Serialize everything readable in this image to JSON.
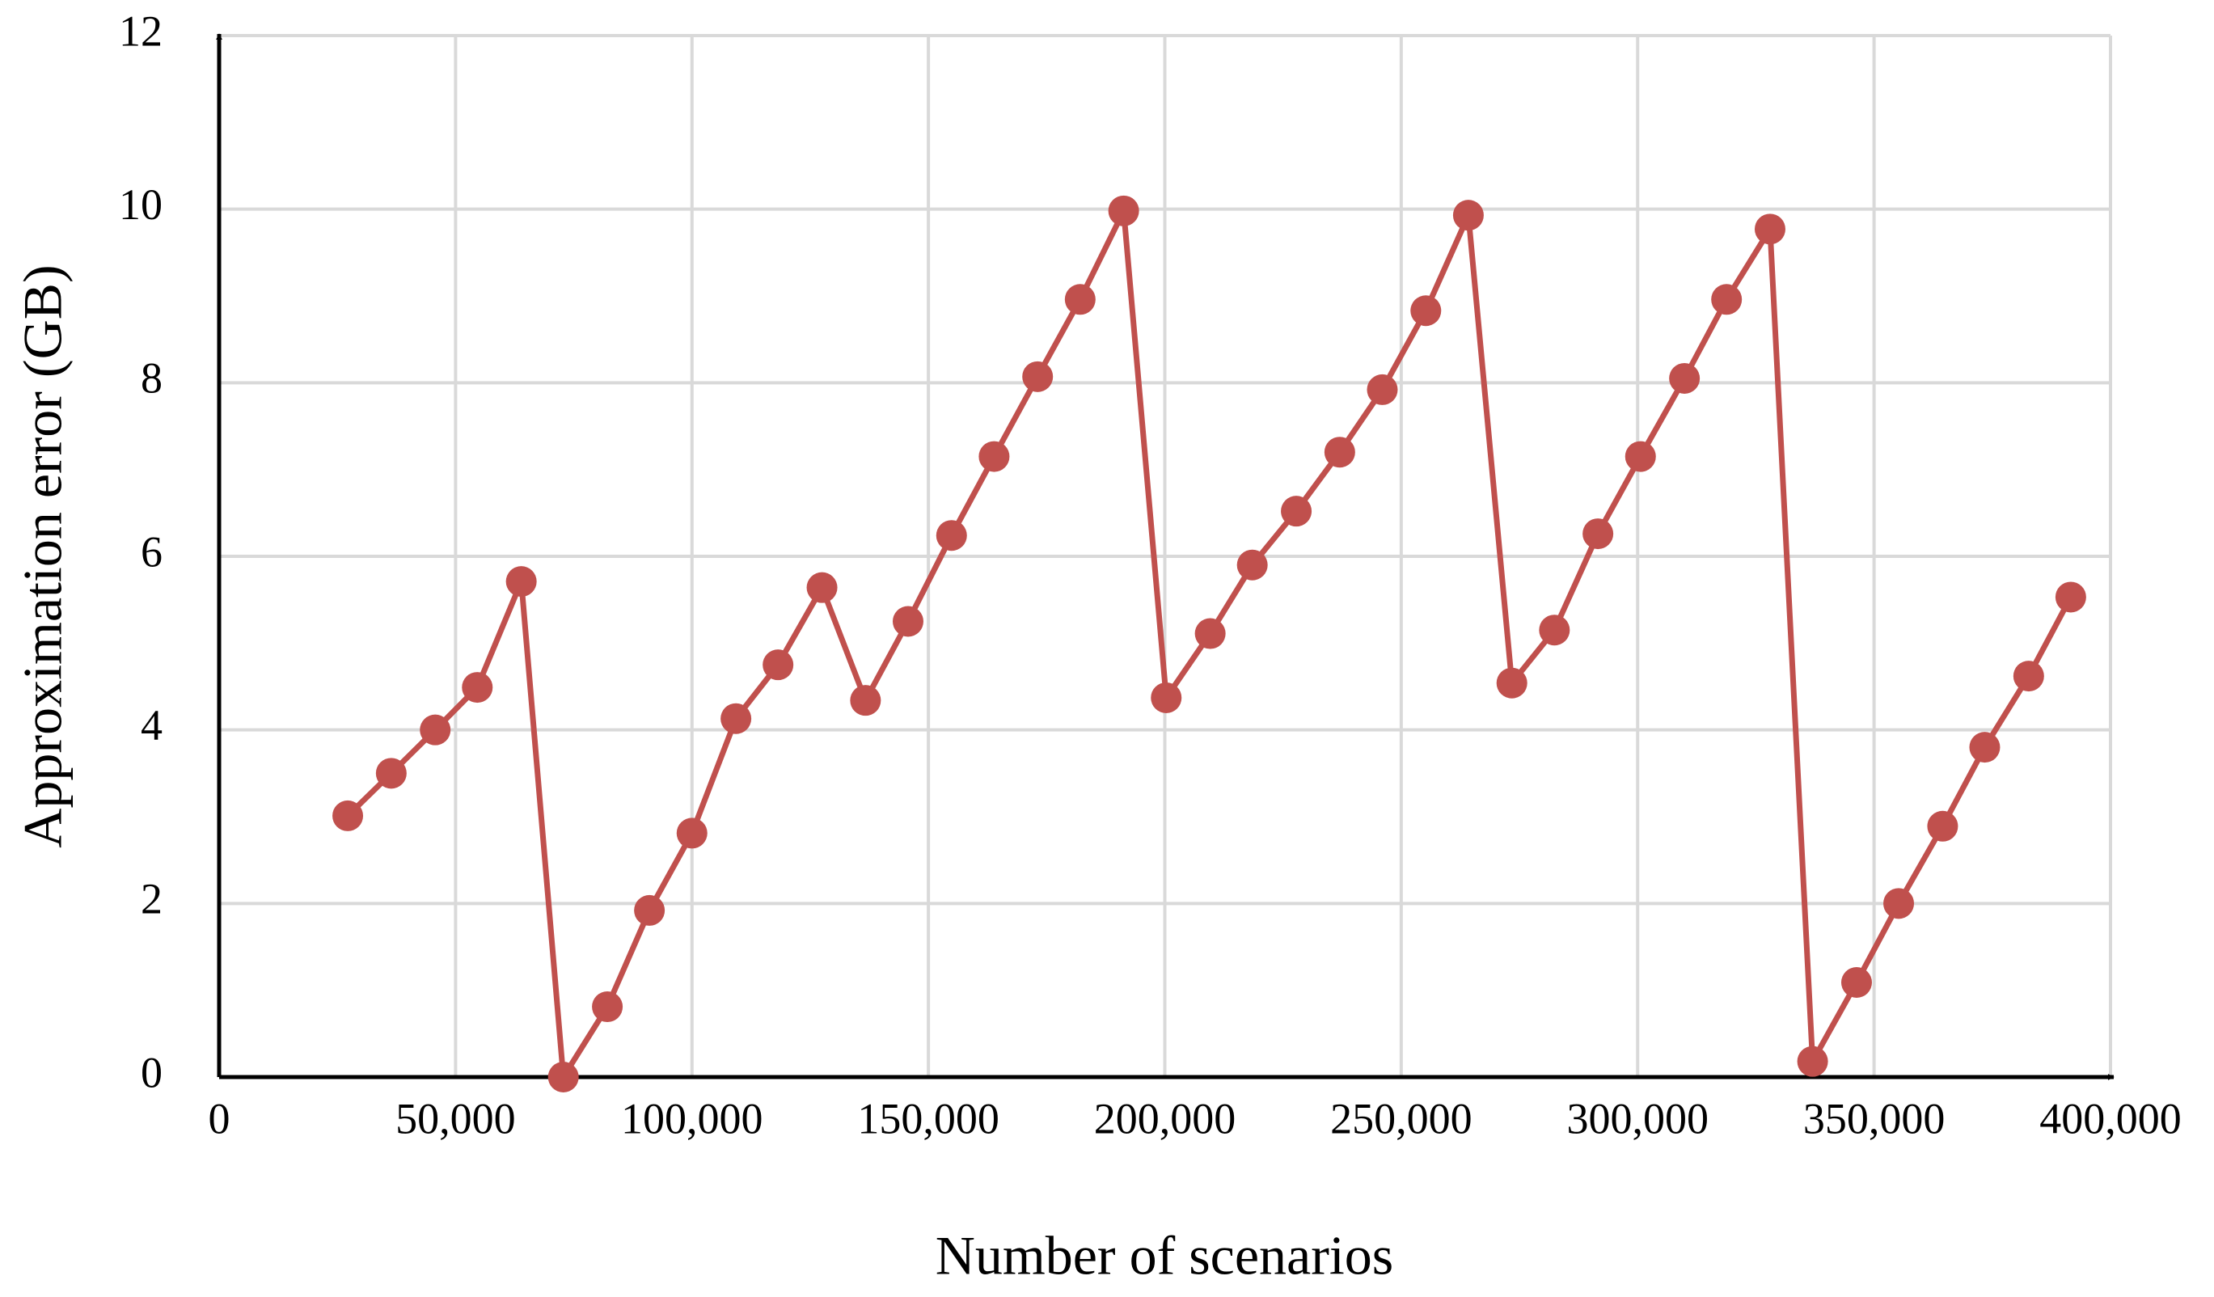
{
  "chart_data": {
    "type": "line",
    "x_label": "Number of scenarios",
    "y_label": "Approximation error (GB)",
    "x": [
      27200,
      36400,
      45700,
      54600,
      63900,
      72800,
      82100,
      91000,
      100000,
      109300,
      118200,
      127500,
      136700,
      145700,
      154900,
      163900,
      173100,
      182100,
      191300,
      200300,
      209600,
      218500,
      227800,
      237000,
      246000,
      255200,
      264200,
      273400,
      282400,
      291600,
      300600,
      309900,
      318800,
      328000,
      337000,
      346300,
      355200,
      364500,
      373400,
      382700,
      391600
    ],
    "values": [
      3.01,
      3.5,
      4.0,
      4.49,
      5.71,
      0,
      0.81,
      1.92,
      2.81,
      4.13,
      4.75,
      5.64,
      4.34,
      5.25,
      6.24,
      7.15,
      8.07,
      8.96,
      9.98,
      4.37,
      5.11,
      5.9,
      6.52,
      7.2,
      7.92,
      8.83,
      9.93,
      4.54,
      5.15,
      6.26,
      7.15,
      8.05,
      8.96,
      9.77,
      0.18,
      1.09,
      2.0,
      2.89,
      3.8,
      4.62,
      5.53
    ],
    "color": "#c0504d",
    "xlim": [
      0,
      400000
    ],
    "xticks": [
      0,
      {
        "value": 50000,
        "label": "50,000"
      },
      {
        "value": 100000,
        "label": "100,000"
      },
      {
        "value": 150000,
        "label": "150,000"
      },
      {
        "value": 200000,
        "label": "200,000"
      },
      {
        "value": 250000,
        "label": "250,000"
      },
      {
        "value": 300000,
        "label": "300,000"
      },
      {
        "value": 350000,
        "label": "350,000"
      },
      {
        "value": 400000,
        "label": "400,000"
      }
    ],
    "ylim": [
      0,
      12
    ],
    "yticks": [
      0,
      2,
      4,
      6,
      8,
      10,
      12
    ],
    "grid": true
  }
}
